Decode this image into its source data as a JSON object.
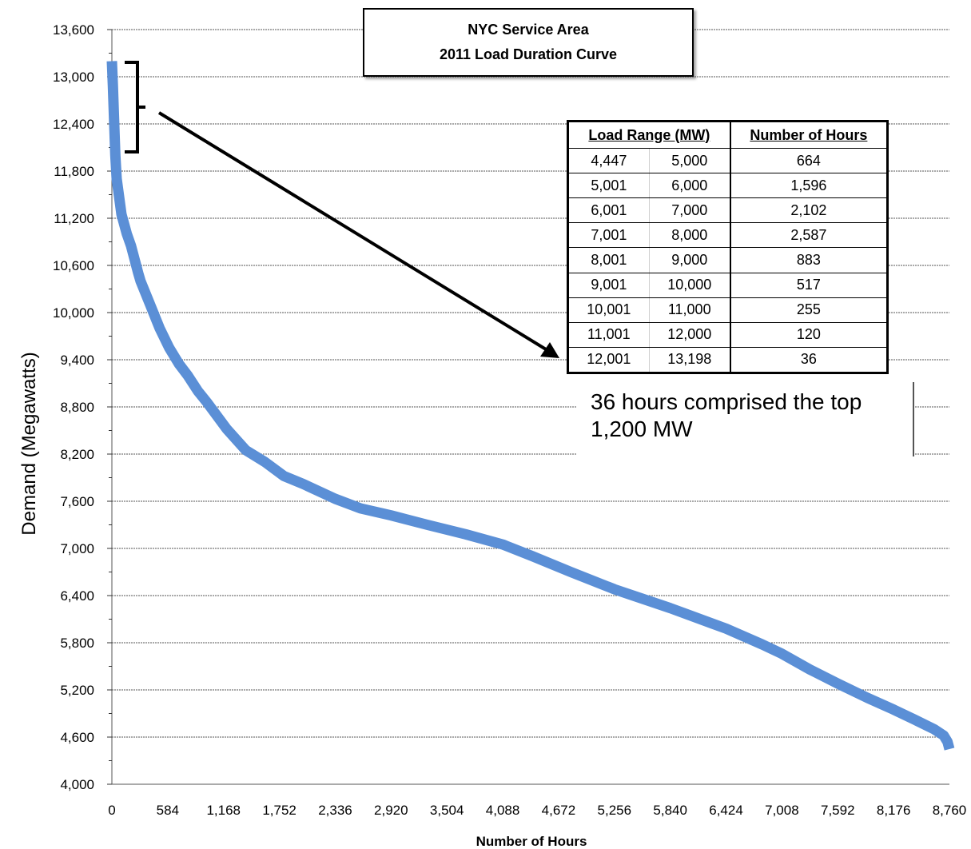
{
  "chart_data": {
    "type": "line",
    "title": "NYC Service Area",
    "subtitle": "2011 Load Duration Curve",
    "xlabel": "Number of Hours",
    "ylabel": "Demand (Megawatts)",
    "xlim": [
      0,
      8760
    ],
    "ylim": [
      4000,
      13600
    ],
    "xticks": [
      0,
      584,
      1168,
      1752,
      2336,
      2920,
      3504,
      4088,
      4672,
      5256,
      5840,
      6424,
      7008,
      7592,
      8176,
      8760
    ],
    "xtick_labels": [
      "0",
      "584",
      "1,168",
      "1,752",
      "2,336",
      "2,920",
      "3,504",
      "4,088",
      "4,672",
      "5,256",
      "5,840",
      "6,424",
      "7,008",
      "7,592",
      "8,176",
      "8,760"
    ],
    "yticks": [
      4000,
      4600,
      5200,
      5800,
      6400,
      7000,
      7600,
      8200,
      8800,
      9400,
      10000,
      10600,
      11200,
      11800,
      12400,
      13000,
      13600
    ],
    "ytick_labels": [
      "4,000",
      "4,600",
      "5,200",
      "5,800",
      "6,400",
      "7,000",
      "7,600",
      "8,200",
      "8,800",
      "9,400",
      "10,000",
      "10,600",
      "11,200",
      "11,800",
      "12,400",
      "13,000",
      "13,600"
    ],
    "grid": "horizontal",
    "series": [
      {
        "color": "#5b8fd6",
        "x": [
          0,
          10,
          36,
          50,
          100,
          156,
          200,
          276,
          300,
          400,
          500,
          600,
          700,
          793,
          900,
          1000,
          1200,
          1400,
          1600,
          1800,
          2000,
          2336,
          2600,
          2920,
          3300,
          3700,
          4088,
          4400,
          4800,
          5256,
          5840,
          6424,
          6800,
          7008,
          7300,
          7592,
          7900,
          8176,
          8400,
          8600,
          8700,
          8740,
          8760
        ],
        "values": [
          13198,
          12900,
          12001,
          11700,
          11250,
          11001,
          10850,
          10500,
          10400,
          10100,
          9800,
          9550,
          9350,
          9200,
          9000,
          8850,
          8520,
          8250,
          8100,
          7920,
          7820,
          7630,
          7510,
          7420,
          7300,
          7180,
          7050,
          6900,
          6700,
          6480,
          6240,
          5980,
          5780,
          5660,
          5460,
          5280,
          5100,
          4950,
          4820,
          4700,
          4620,
          4540,
          4447
        ]
      }
    ],
    "table": {
      "headers": [
        "Load Range (MW)",
        "Number of Hours"
      ],
      "rows": [
        [
          "4,447",
          "5,000",
          "664"
        ],
        [
          "5,001",
          "6,000",
          "1,596"
        ],
        [
          "6,001",
          "7,000",
          "2,102"
        ],
        [
          "7,001",
          "8,000",
          "2,587"
        ],
        [
          "8,001",
          "9,000",
          "883"
        ],
        [
          "9,001",
          "10,000",
          "517"
        ],
        [
          "10,001",
          "11,000",
          "255"
        ],
        [
          "11,001",
          "12,000",
          "120"
        ],
        [
          "12,001",
          "13,198",
          "36"
        ]
      ]
    },
    "annotation": "36 hours comprised the top 1,200 MW"
  }
}
